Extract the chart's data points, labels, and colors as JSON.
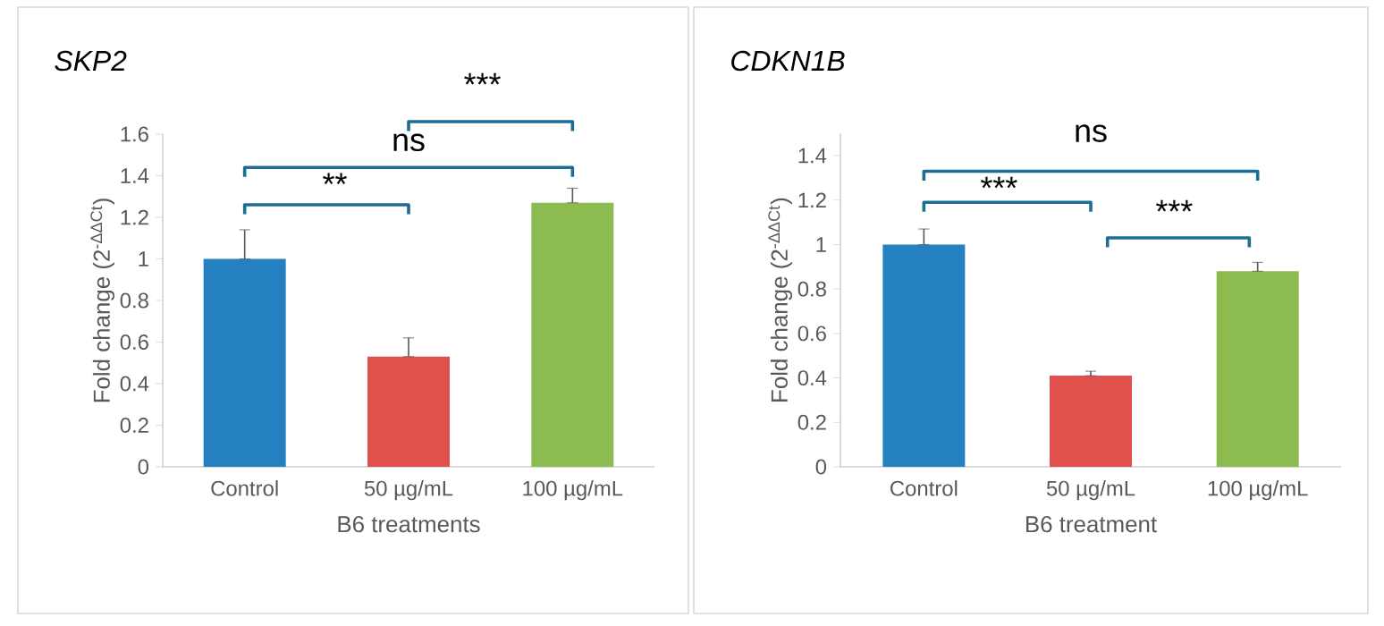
{
  "chart_data": [
    {
      "type": "bar",
      "title": "SKP2",
      "xlabel": "B6 treatments",
      "ylabel": "Fold change (2$^{-ΔΔCt}$)",
      "categories": [
        "Control",
        "50 µg/mL",
        "100 µg/mL"
      ],
      "values": [
        1.0,
        0.53,
        1.27
      ],
      "colors": [
        "#2580c2",
        "#e0504d",
        "#8cbb4f"
      ],
      "errors": [
        [
          1.0,
          1.14
        ],
        [
          0.53,
          0.62
        ],
        [
          1.27,
          1.34
        ]
      ],
      "ylim": [
        0,
        1.6
      ],
      "yticks": [
        0,
        0.2,
        0.4,
        0.6,
        0.8,
        1,
        1.2,
        1.4,
        1.6
      ],
      "grid": false,
      "annotations": [
        "**",
        "ns",
        "***"
      ]
    },
    {
      "type": "bar",
      "title": "CDKN1B",
      "xlabel": "B6 treatment",
      "ylabel": "Fold change (2$^{-ΔΔCt}$)",
      "categories": [
        "Control",
        "50 µg/mL",
        "100 µg/mL"
      ],
      "values": [
        1.0,
        0.41,
        0.88
      ],
      "colors": [
        "#2580c2",
        "#e0504d",
        "#8cbb4f"
      ],
      "errors": [
        [
          1.0,
          1.07
        ],
        [
          0.41,
          0.43
        ],
        [
          0.88,
          0.92
        ]
      ],
      "ylim": [
        0,
        1.5
      ],
      "yticks": [
        0,
        0.2,
        0.4,
        0.6,
        0.8,
        1,
        1.2,
        1.4
      ],
      "grid": false,
      "annotations": [
        "ns",
        "***",
        "***"
      ]
    }
  ]
}
